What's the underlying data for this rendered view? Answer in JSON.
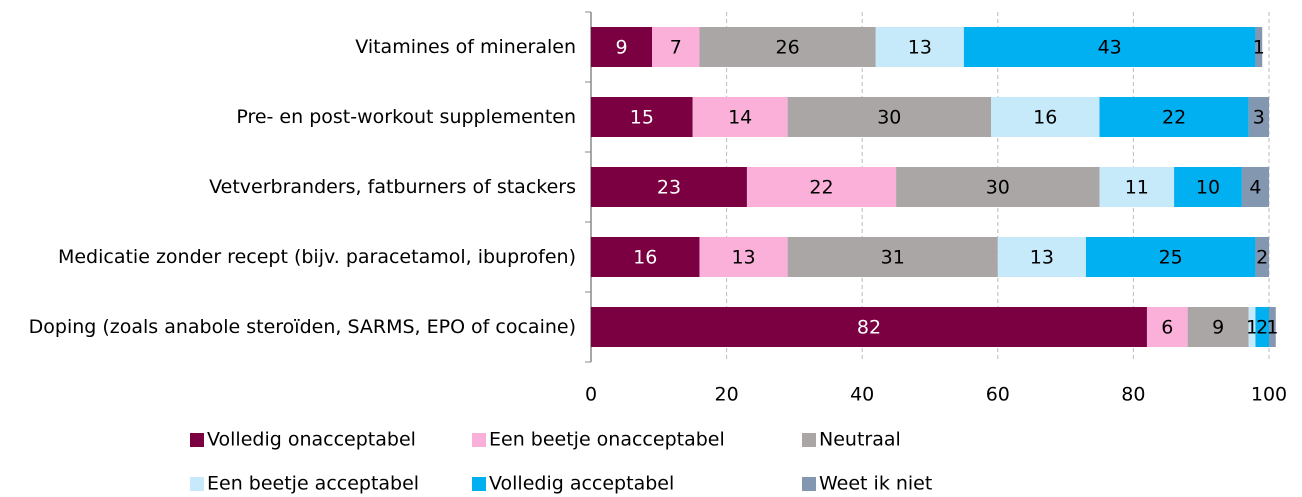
{
  "chart_data": {
    "type": "stacked_bar_horizontal",
    "categories": [
      "Vitamines of mineralen",
      "Pre- en post-workout supplementen",
      "Vetverbranders, fatburners of stackers",
      "Medicatie zonder recept (bijv. paracetamol, ibuprofen)",
      "Doping (zoals anabole steroïden, SARMS, EPO of cocaine)"
    ],
    "series": [
      {
        "name": "Volledig onacceptabel",
        "color": "#7b0041",
        "values": [
          9,
          15,
          23,
          16,
          82
        ]
      },
      {
        "name": "Een beetje onacceptabel",
        "color": "#fbb0da",
        "values": [
          7,
          14,
          22,
          13,
          6
        ]
      },
      {
        "name": "Neutraal",
        "color": "#aaa6a6",
        "values": [
          26,
          30,
          30,
          31,
          9
        ]
      },
      {
        "name": "Een beetje acceptabel",
        "color": "#c6eafa",
        "values": [
          13,
          16,
          11,
          13,
          1
        ]
      },
      {
        "name": "Volledig acceptabel",
        "color": "#00b0f0",
        "values": [
          43,
          22,
          10,
          25,
          2
        ]
      },
      {
        "name": "Weet ik niet",
        "color": "#8497b0",
        "values": [
          1,
          3,
          4,
          2,
          1
        ]
      }
    ],
    "xlim": [
      0,
      100
    ],
    "xticks": [
      0,
      20,
      40,
      60,
      80,
      100
    ],
    "grid": true,
    "legend": "bottom"
  }
}
